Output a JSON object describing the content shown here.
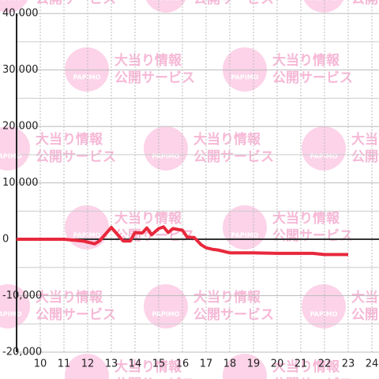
{
  "chart_data": {
    "type": "line",
    "watermark": {
      "brand": "PAPIMO",
      "line1": "大当り情報",
      "line2": "公開サービス"
    },
    "x": [
      9,
      11,
      11.8,
      12.3,
      12.5,
      13,
      13.5,
      13.8,
      14,
      14.3,
      14.5,
      14.7,
      15,
      15.2,
      15.4,
      15.6,
      16,
      16.2,
      16.5,
      16.8,
      17,
      17.3,
      17.5,
      18,
      19,
      20,
      21,
      21.5,
      22,
      23
    ],
    "series": [
      {
        "color": "#e8283c",
        "values": [
          0,
          0,
          -300,
          -800,
          -300,
          2100,
          -300,
          -300,
          1200,
          1100,
          2000,
          800,
          1900,
          2200,
          1200,
          1900,
          1600,
          400,
          300,
          -1000,
          -1500,
          -1800,
          -1900,
          -2400,
          -2400,
          -2500,
          -2500,
          -2500,
          -2700,
          -2700
        ]
      }
    ],
    "xlim": [
      9,
      24.3
    ],
    "xticks": [
      10,
      11,
      12,
      13,
      14,
      15,
      16,
      17,
      18,
      19,
      20,
      21,
      22,
      23,
      24
    ],
    "ylim": [
      -20000,
      42400
    ],
    "yticks": [
      {
        "value": -20000,
        "label": "-20,000"
      },
      {
        "value": -10000,
        "label": "-10,000"
      },
      0,
      {
        "value": 10000,
        "label": "10,000"
      },
      {
        "value": 20000,
        "label": "20,000"
      },
      {
        "value": 30000,
        "label": "30,000"
      },
      {
        "value": 40000,
        "label": "40,000"
      }
    ],
    "minor_yticks": [
      -15000,
      -5000,
      5000,
      15000,
      25000,
      35000
    ],
    "grid": true
  }
}
